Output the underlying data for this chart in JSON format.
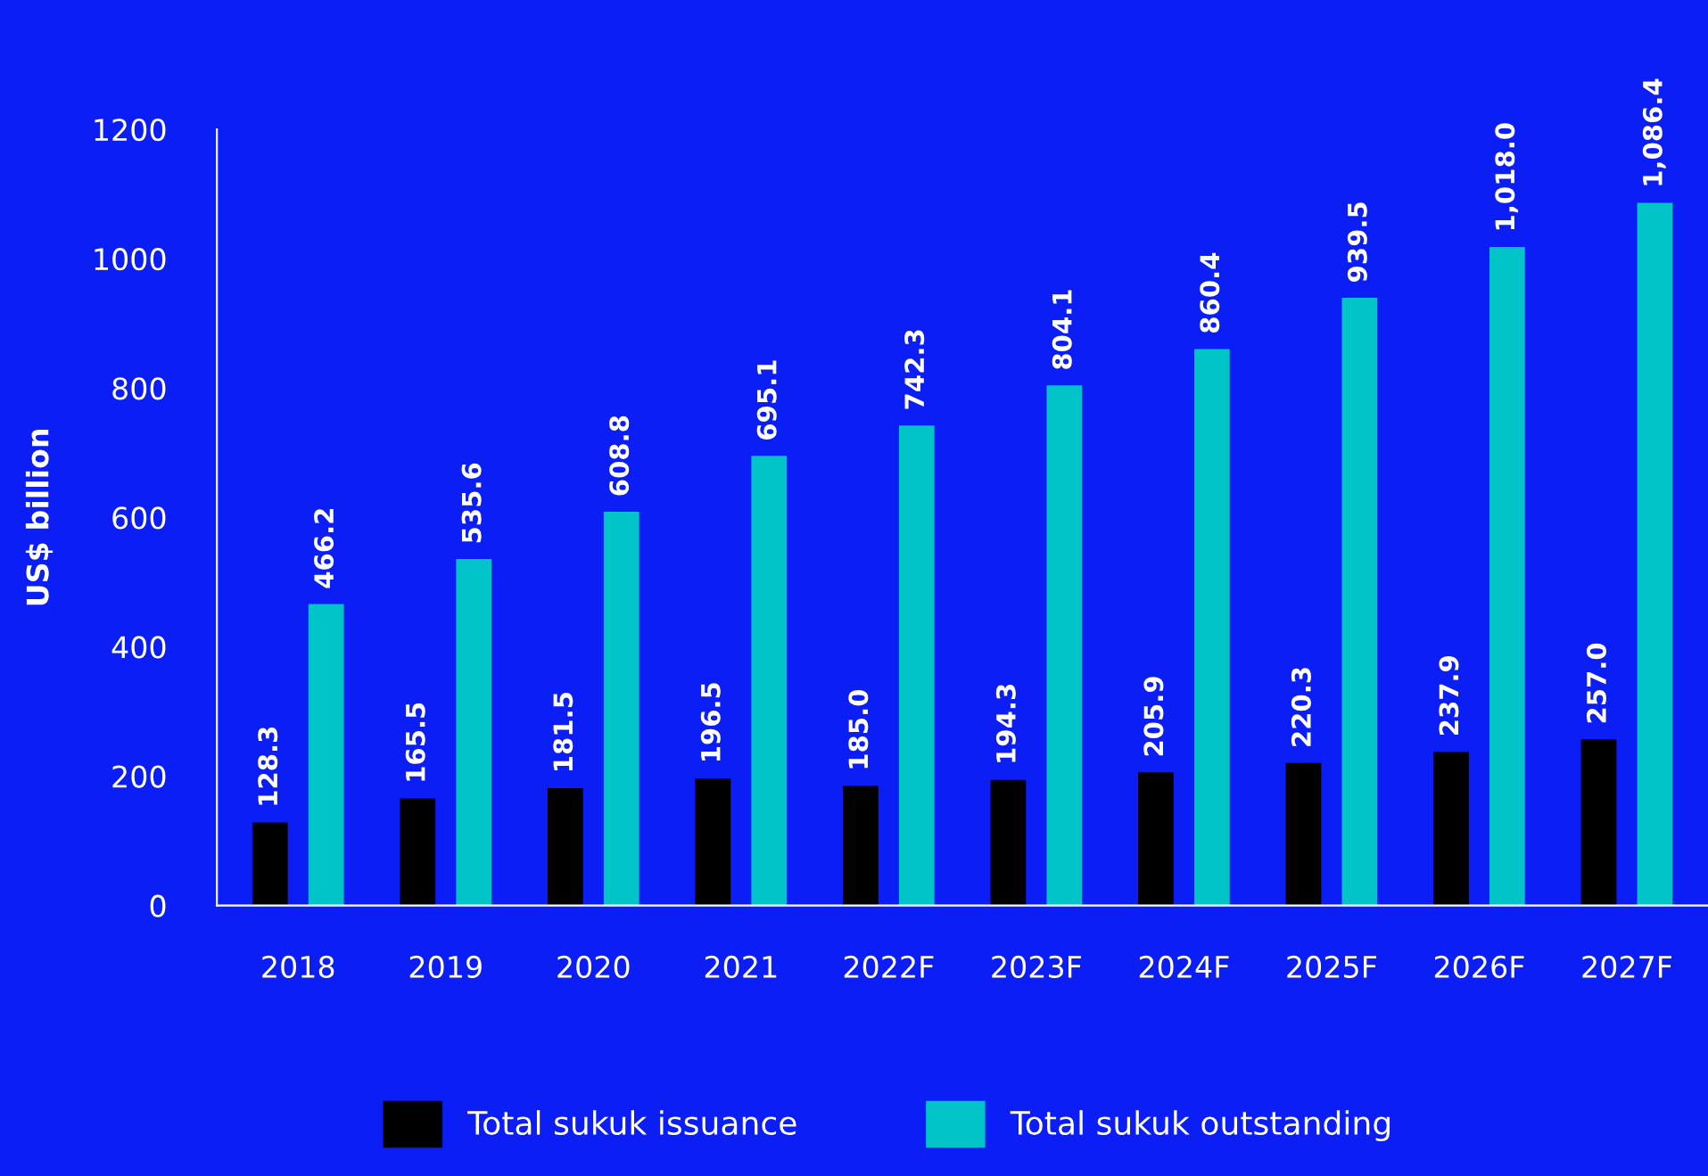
{
  "chart_data": {
    "type": "bar",
    "ylabel": "US$ billion",
    "categories": [
      "2018",
      "2019",
      "2020",
      "2021",
      "2022F",
      "2023F",
      "2024F",
      "2025F",
      "2026F",
      "2027F"
    ],
    "series": [
      {
        "name": "Total sukuk issuance",
        "color": "#000000",
        "values": [
          128.3,
          165.5,
          181.5,
          196.5,
          185.0,
          194.3,
          205.9,
          220.3,
          237.9,
          257.0
        ],
        "value_labels": [
          "128.3",
          "165.5",
          "181.5",
          "196.5",
          "185.0",
          "194.3",
          "205.9",
          "220.3",
          "237.9",
          "257.0"
        ]
      },
      {
        "name": "Total sukuk outstanding",
        "color": "#00c4c8",
        "values": [
          466.2,
          535.6,
          608.8,
          695.1,
          742.3,
          804.1,
          860.4,
          939.5,
          1018.0,
          1086.4
        ],
        "value_labels": [
          "466.2",
          "535.6",
          "608.8",
          "695.1",
          "742.3",
          "804.1",
          "860.4",
          "939.5",
          "1,018.0",
          "1,086.4"
        ]
      }
    ],
    "ylim": [
      0,
      1200
    ],
    "yticks": [
      0,
      200,
      400,
      600,
      800,
      1000,
      1200
    ],
    "grid": false,
    "legend": "bottom"
  }
}
